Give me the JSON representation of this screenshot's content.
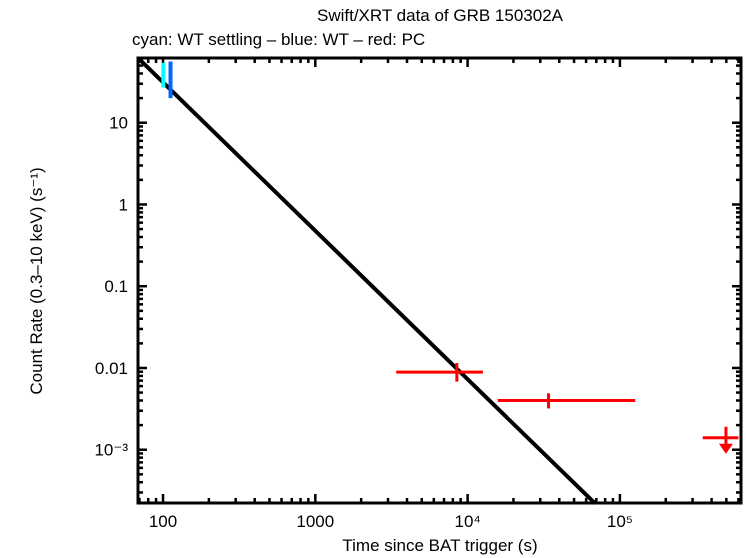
{
  "page": {
    "background": "#ffffff"
  },
  "chart_data": {
    "type": "scatter",
    "title": "Swift/XRT data of GRB 150302A",
    "subtitle": "cyan: WT settling – blue: WT – red: PC",
    "xlabel": "Time since BAT trigger (s)",
    "ylabel": "Count Rate (0.3–10 keV) (s⁻¹)",
    "xscale": "log",
    "yscale": "log",
    "grid": false,
    "legend_position": "subtitle",
    "xlim": [
      68.5,
      624000
    ],
    "ylim": [
      0.000223,
      61.9
    ],
    "x_ticks": [
      {
        "v": 100,
        "label": "100"
      },
      {
        "v": 1000,
        "label": "1000"
      },
      {
        "v": 10000,
        "label": "10⁴"
      },
      {
        "v": 100000,
        "label": "10⁵"
      }
    ],
    "y_ticks": [
      {
        "v": 10,
        "label": "10"
      },
      {
        "v": 1,
        "label": "1"
      },
      {
        "v": 0.1,
        "label": "0.1"
      },
      {
        "v": 0.01,
        "label": "0.01"
      },
      {
        "v": 0.001,
        "label": "10⁻³"
      }
    ],
    "fit_line": {
      "name": "power-law fit",
      "color": "#000000",
      "points": [
        {
          "t": 68.5,
          "rate": 62
        },
        {
          "t": 68700,
          "rate": 0.00022
        }
      ]
    },
    "series": [
      {
        "name": "WT settling",
        "color": "#00ffff",
        "points": [
          {
            "t": 100.5,
            "rate": 38,
            "rate_lo": 27,
            "rate_hi": 54
          }
        ]
      },
      {
        "name": "WT",
        "color": "#0066ff",
        "points": [
          {
            "t": 112,
            "rate": 34,
            "rate_lo": 20,
            "rate_hi": 56
          }
        ]
      },
      {
        "name": "PC",
        "color": "#ff0000",
        "points": [
          {
            "t": 8500,
            "t_lo": 3400,
            "t_hi": 12600,
            "rate": 0.0089,
            "rate_lo": 0.0068,
            "rate_hi": 0.0115
          },
          {
            "t": 34000,
            "t_lo": 15800,
            "t_hi": 126000,
            "rate": 0.004,
            "rate_lo": 0.0032,
            "rate_hi": 0.0049
          }
        ]
      },
      {
        "name": "PC upper limit",
        "color": "#ff0000",
        "upper_limit": true,
        "points": [
          {
            "t": 497000,
            "t_lo": 350000,
            "t_hi": 600000,
            "rate": 0.0014
          }
        ]
      }
    ]
  }
}
